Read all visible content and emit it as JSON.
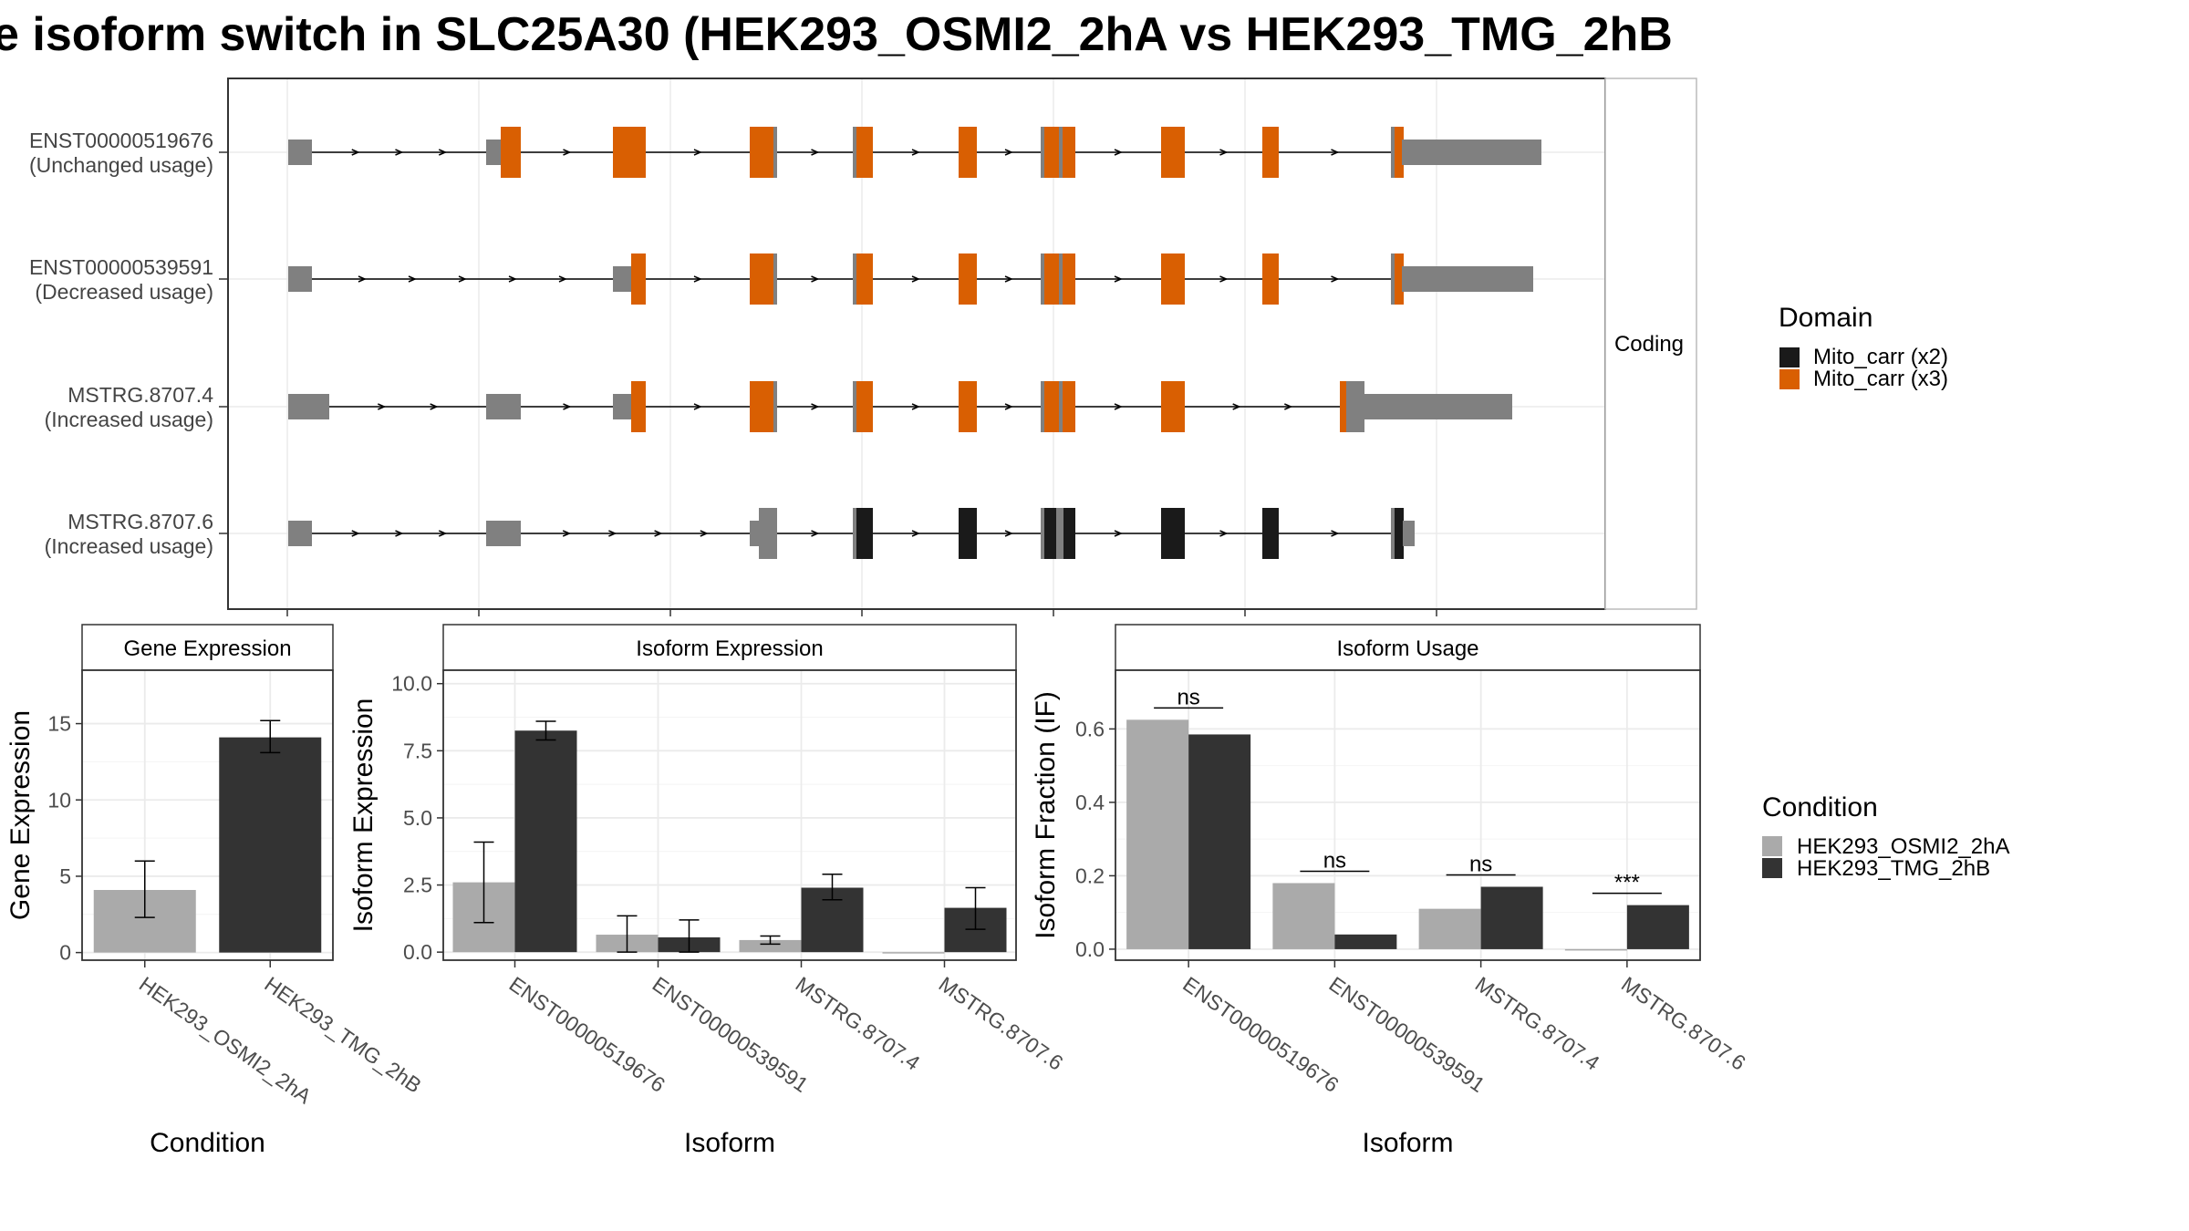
{
  "title": "e isoform switch in SLC25A30 (HEK293_OSMI2_2hA vs HEK293_TMG_2hB",
  "colors": {
    "mito_x2": "#1a1a1a",
    "mito_x3": "#d95f02",
    "noncoding": "#808080",
    "cond_a": "#aaaaaa",
    "cond_b": "#333333",
    "grid": "#ebebeb",
    "panel_border": "#333333"
  },
  "structure": {
    "strip_label": "Coding",
    "isoforms": [
      {
        "id": "ENST00000519676",
        "usage": "(Unchanged usage)"
      },
      {
        "id": "ENST00000539591",
        "usage": "(Decreased usage)"
      },
      {
        "id": "MSTRG.8707.4",
        "usage": "(Increased usage)"
      },
      {
        "id": "MSTRG.8707.6",
        "usage": "(Increased usage)"
      }
    ]
  },
  "legend_domain": {
    "title": "Domain",
    "items": [
      {
        "label": "Mito_carr (x2)",
        "color": "#1a1a1a"
      },
      {
        "label": "Mito_carr (x3)",
        "color": "#d95f02"
      }
    ]
  },
  "legend_condition": {
    "title": "Condition",
    "items": [
      {
        "label": "HEK293_OSMI2_2hA",
        "color": "#aaaaaa"
      },
      {
        "label": "HEK293_TMG_2hB",
        "color": "#333333"
      }
    ]
  },
  "chart_data": [
    {
      "type": "bar",
      "title": "Gene Expression",
      "xlabel": "Condition",
      "ylabel": "Gene Expression",
      "categories": [
        "HEK293_OSMI2_2hA",
        "HEK293_TMG_2hB"
      ],
      "values": [
        4.1,
        14.1
      ],
      "errors": [
        [
          2.3,
          6.0
        ],
        [
          13.1,
          15.2
        ]
      ],
      "ylim": [
        -0.5,
        18.5
      ],
      "yticks": [
        0,
        5,
        10,
        15
      ]
    },
    {
      "type": "bar",
      "title": "Isoform Expression",
      "xlabel": "Isoform",
      "ylabel": "Isoform Expression",
      "categories": [
        "ENST00000519676",
        "ENST00000539591",
        "MSTRG.8707.4",
        "MSTRG.8707.6"
      ],
      "series": [
        {
          "name": "HEK293_OSMI2_2hA",
          "values": [
            2.6,
            0.65,
            0.45,
            0.0
          ],
          "errors": [
            [
              1.1,
              4.1
            ],
            [
              0.0,
              1.35
            ],
            [
              0.3,
              0.6
            ],
            [
              0.0,
              0.0
            ]
          ]
        },
        {
          "name": "HEK293_TMG_2hB",
          "values": [
            8.25,
            0.55,
            2.4,
            1.65
          ],
          "errors": [
            [
              7.9,
              8.6
            ],
            [
              0.0,
              1.2
            ],
            [
              1.95,
              2.9
            ],
            [
              0.85,
              2.4
            ]
          ]
        }
      ],
      "ylim": [
        -0.3,
        10.5
      ],
      "yticks": [
        0.0,
        2.5,
        5.0,
        7.5,
        10.0
      ]
    },
    {
      "type": "bar",
      "title": "Isoform Usage",
      "xlabel": "Isoform",
      "ylabel": "Isoform Fraction (IF)",
      "categories": [
        "ENST00000519676",
        "ENST00000539591",
        "MSTRG.8707.4",
        "MSTRG.8707.6"
      ],
      "series": [
        {
          "name": "HEK293_OSMI2_2hA",
          "values": [
            0.625,
            0.18,
            0.11,
            0.0
          ]
        },
        {
          "name": "HEK293_TMG_2hB",
          "values": [
            0.585,
            0.04,
            0.17,
            0.12
          ]
        }
      ],
      "annotations": [
        "ns",
        "ns",
        "ns",
        "***"
      ],
      "ylim": [
        -0.03,
        0.76
      ],
      "yticks": [
        0.0,
        0.2,
        0.4,
        0.6
      ]
    }
  ]
}
